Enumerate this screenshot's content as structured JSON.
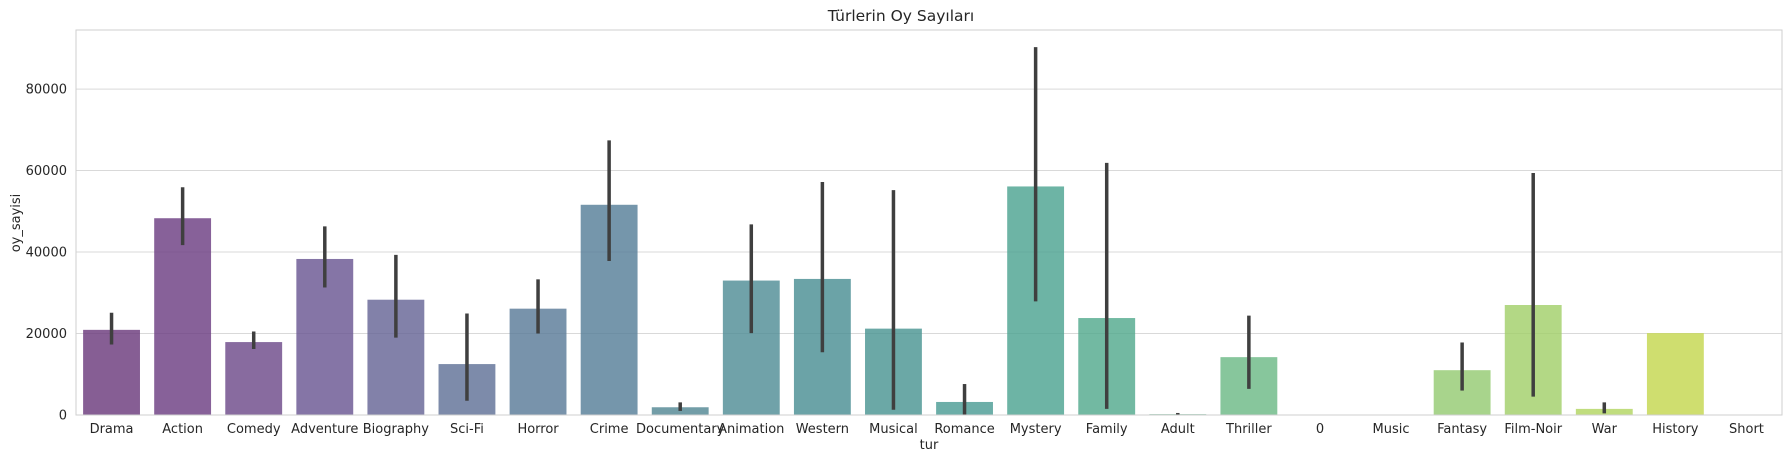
{
  "chart_data": {
    "type": "bar",
    "title": "Türlerin Oy Sayıları",
    "xlabel": "tur",
    "ylabel": "oy_sayisi",
    "ylim": [
      0,
      94500
    ],
    "yticks": [
      0,
      20000,
      40000,
      60000,
      80000
    ],
    "grid": true,
    "categories": [
      "Drama",
      "Action",
      "Comedy",
      "Adventure",
      "Biography",
      "Sci-Fi",
      "Horror",
      "Crime",
      "Documentary",
      "Animation",
      "Western",
      "Musical",
      "Romance",
      "Mystery",
      "Family",
      "Adult",
      "Thriller",
      "0",
      "Music",
      "Fantasy",
      "Film-Noir",
      "War",
      "History",
      "Short"
    ],
    "values": [
      20900,
      48300,
      17900,
      38300,
      28300,
      12500,
      26100,
      51600,
      1900,
      33000,
      33400,
      21200,
      3200,
      56100,
      23800,
      200,
      14200,
      0,
      0,
      11000,
      27000,
      1500,
      20100,
      0
    ],
    "error_low": [
      17300,
      41700,
      16200,
      31300,
      19000,
      3500,
      20000,
      37800,
      1000,
      20100,
      15400,
      1300,
      100,
      27900,
      1500,
      0,
      6400,
      null,
      null,
      6000,
      4500,
      400,
      null,
      null
    ],
    "error_high": [
      25100,
      55900,
      20500,
      46300,
      39300,
      24900,
      33300,
      67400,
      3100,
      46800,
      57200,
      55200,
      7600,
      90300,
      61900,
      500,
      24400,
      null,
      null,
      17800,
      59400,
      3100,
      null,
      null
    ],
    "colors": [
      "#6b3b7d",
      "#6c3e83",
      "#6e4b8a",
      "#6a5793",
      "#676596",
      "#607197",
      "#5a7b98",
      "#577f98",
      "#538894",
      "#508d96",
      "#4a8f94",
      "#4a9592",
      "#4c9c95",
      "#4da391",
      "#53aa8e",
      "#5fb089",
      "#6cb986",
      "#7cc07e",
      "#89c57a",
      "#95ca73",
      "#a2cf6a",
      "#b2d661",
      "#c4d74f",
      "#d2d84a"
    ]
  }
}
